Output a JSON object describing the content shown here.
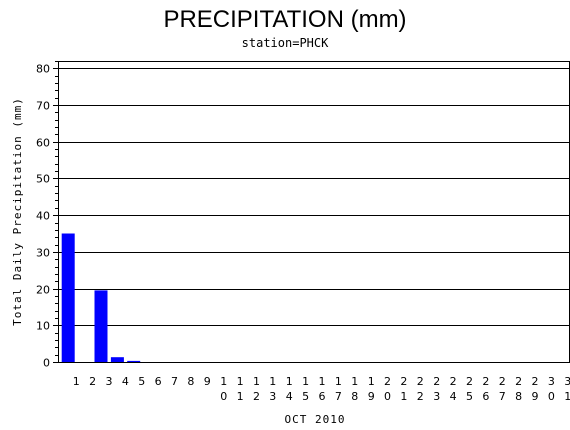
{
  "chart_data": {
    "type": "bar",
    "title": "PRECIPITATION (mm)",
    "subtitle": "station=PHCK",
    "xlabel": "OCT 2010",
    "ylabel": "Total Daily Precipitation (mm)",
    "ylim": [
      0,
      82
    ],
    "yticks": [
      0,
      10,
      20,
      30,
      40,
      50,
      60,
      70,
      80
    ],
    "grid": true,
    "categories": [
      "1",
      "2",
      "3",
      "4",
      "5",
      "6",
      "7",
      "8",
      "9",
      "10",
      "11",
      "12",
      "13",
      "14",
      "15",
      "16",
      "17",
      "18",
      "19",
      "20",
      "21",
      "22",
      "23",
      "24",
      "25",
      "26",
      "27",
      "28",
      "29",
      "30",
      "31"
    ],
    "values": [
      35,
      0,
      19.5,
      1.3,
      0.3,
      0,
      0,
      0,
      0,
      0,
      0,
      0,
      0,
      0,
      0,
      0,
      0,
      0,
      0,
      0,
      0,
      0,
      0,
      0,
      0,
      0,
      0,
      0,
      0,
      0,
      0
    ],
    "bar_color": "#0000ff"
  }
}
